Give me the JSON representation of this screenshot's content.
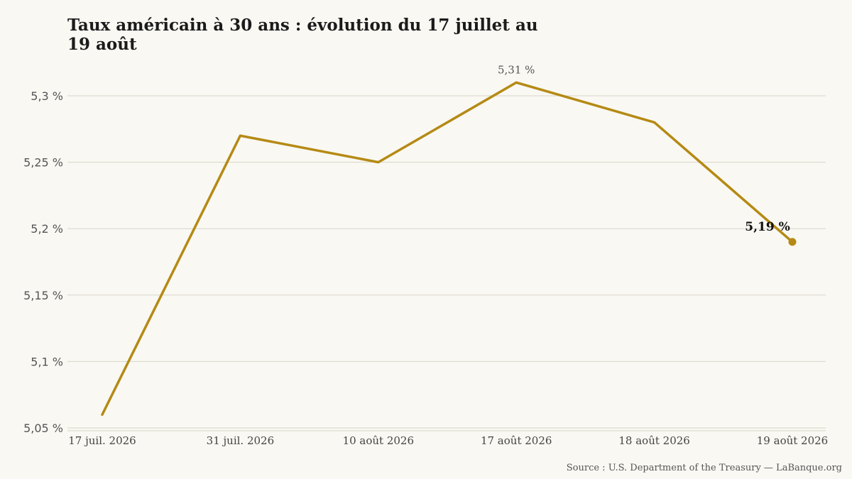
{
  "chart_data": {
    "type": "line",
    "title": "Taux américain à 30 ans : évolution du 17 juillet au 19 août",
    "xlabel": "",
    "ylabel": "",
    "categories": [
      "17 juil. 2026",
      "31 juil. 2026",
      "10 août 2026",
      "17 août 2026",
      "18 août 2026",
      "19 août 2026"
    ],
    "series": [
      {
        "values": [
          5.06,
          5.27,
          5.25,
          5.31,
          5.28,
          5.19
        ]
      }
    ],
    "ylim": [
      5.05,
      5.3
    ],
    "yticks": [
      5.05,
      5.1,
      5.15,
      5.2,
      5.25,
      5.3
    ],
    "ytick_labels": [
      "5,05 %",
      "5,1 %",
      "5,15 %",
      "5,2 %",
      "5,25 %",
      "5,3 %"
    ],
    "annotations": [
      {
        "category": "17 août 2026",
        "value": 5.31,
        "text": "5,31 %"
      },
      {
        "category": "19 août 2026",
        "value": 5.19,
        "text": "5,19 %"
      }
    ],
    "grid": "horizontal",
    "legend": "none",
    "line_color": "#b58a14",
    "grid_color": "#d9d4c7",
    "source": "Source : U.S. Department of the Treasury — LaBanque.org"
  }
}
